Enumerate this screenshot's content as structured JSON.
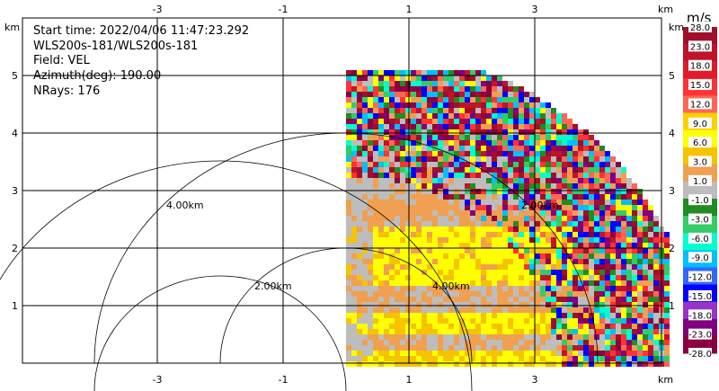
{
  "info": {
    "start_time": "Start time: 2022/04/06 11:47:23.292",
    "instrument": "WLS200s-181/WLS200s-181",
    "field": "Field: VEL",
    "azimuth": "Azimuth(deg): 190.00",
    "nrays": "NRays: 176"
  },
  "axes": {
    "x_unit": "km",
    "y_unit": "km",
    "x_ticks": [
      "-3",
      "-1",
      "1",
      "3"
    ],
    "x_tick_values": [
      -3,
      -1,
      1,
      3
    ],
    "y_ticks": [
      "1",
      "2",
      "3",
      "4",
      "5"
    ],
    "y_tick_values": [
      1,
      2,
      3,
      4,
      5
    ],
    "xlim": [
      -4.2,
      4.2
    ],
    "ylim": [
      0,
      5.3
    ]
  },
  "range_rings": {
    "labels": [
      "4.00km",
      "2.00km",
      "2.00km",
      "4.00km"
    ]
  },
  "colorbar": {
    "unit": "m/s",
    "labels": [
      "28.0",
      "23.0",
      "18.0",
      "15.0",
      "12.0",
      "9.0",
      "6.0",
      "3.0",
      "1.0",
      "-1.0",
      "-3.0",
      "-6.0",
      "-9.0",
      "-12.0",
      "-15.0",
      "-18.0",
      "-23.0",
      "-28.0"
    ],
    "colors": [
      "#a0102a",
      "#c0142a",
      "#e01b2a",
      "#ff3333",
      "#ff6655",
      "#ffd000",
      "#ffff00",
      "#f5c400",
      "#f0a050",
      "#bdbdbd",
      "#228b22",
      "#33cc66",
      "#00ffcc",
      "#00bfff",
      "#3366ff",
      "#0000ff",
      "#9933cc",
      "#800080",
      "#8b0040"
    ]
  }
}
